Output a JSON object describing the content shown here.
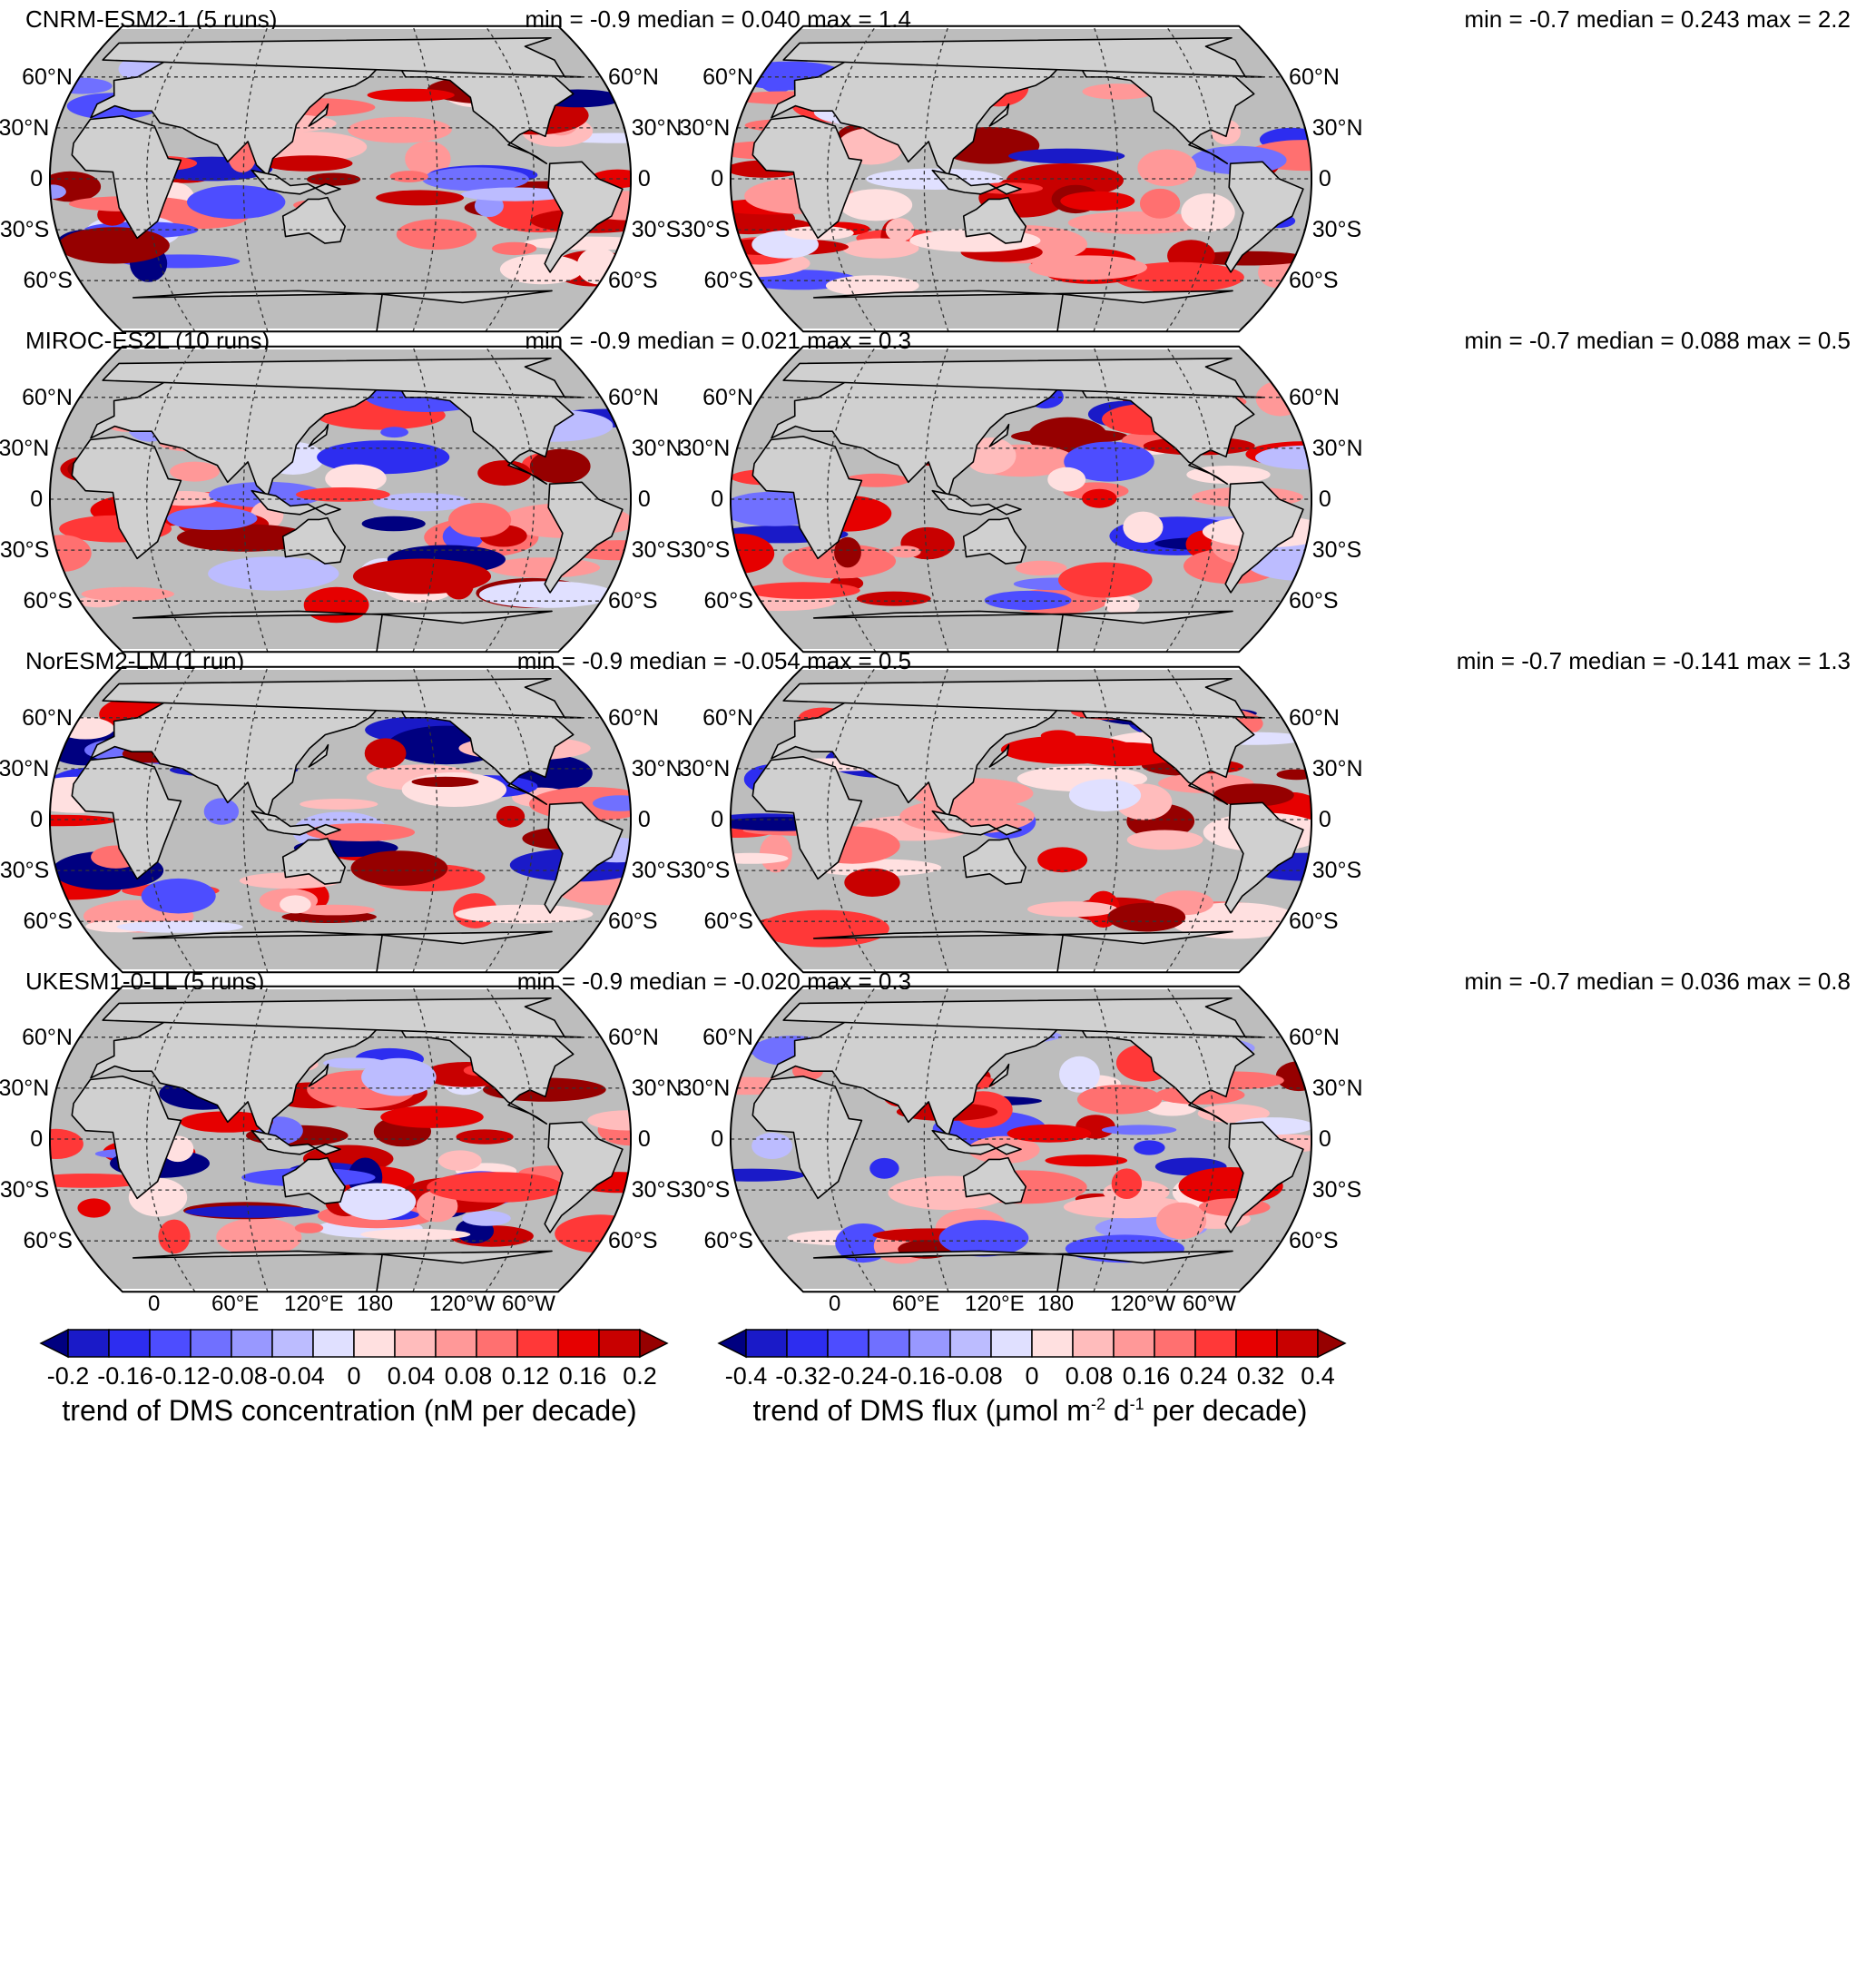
{
  "rows": [
    {
      "model": "CNRM-ESM2-1 (5 runs)",
      "left_stats": "min = -0.9 median = 0.040 max = 1.4",
      "right_stats": "min = -0.7 median = 0.243 max = 2.2"
    },
    {
      "model": "MIROC-ES2L (10 runs)",
      "left_stats": "min = -0.9 median = 0.021 max = 0.3",
      "right_stats": "min = -0.7 median = 0.088 max = 0.5"
    },
    {
      "model": "NorESM2-LM (1 run)",
      "left_stats": "min = -0.9 median = -0.054 max = 0.5",
      "right_stats": "min = -0.7 median = -0.141 max = 1.3"
    },
    {
      "model": "UKESM1-0-LL (5 runs)",
      "left_stats": "min = -0.9 median = -0.020 max = 0.3",
      "right_stats": "min = -0.7 median = 0.036 max = 0.8"
    }
  ],
  "lat_labels": {
    "n60": "60°N",
    "n30": "30°N",
    "eq": "0",
    "s30": "30°S",
    "s60": "60°S"
  },
  "lon_labels": [
    "60°E",
    "120°E",
    "180",
    "120°W",
    "60°W",
    "0"
  ],
  "colorbars": {
    "left": {
      "ticks": [
        "-0.2",
        "-0.16",
        "-0.12",
        "-0.08",
        "-0.04",
        "0",
        "0.04",
        "0.08",
        "0.12",
        "0.16",
        "0.2"
      ],
      "title": "trend of DMS concentration (nM per decade)"
    },
    "right": {
      "ticks": [
        "-0.4",
        "-0.32",
        "-0.24",
        "-0.16",
        "-0.08",
        "0",
        "0.08",
        "0.16",
        "0.24",
        "0.32",
        "0.4"
      ],
      "title_pre": "trend of DMS flux (μmol m",
      "title_sup1": "-2",
      "title_mid": " d",
      "title_sup2": "-1",
      "title_post": " per decade)"
    }
  },
  "colors": {
    "palette": [
      "#000080",
      "#1a1ac8",
      "#2d2df0",
      "#4d4dff",
      "#7070ff",
      "#9898ff",
      "#bcbcff",
      "#e0e0ff",
      "#ffe0e0",
      "#ffbcbc",
      "#ff9898",
      "#ff7070",
      "#ff3838",
      "#e60000",
      "#c80000",
      "#960000"
    ],
    "land": "#d0d0d0",
    "ocean_nodata": "#bdbdbd"
  }
}
